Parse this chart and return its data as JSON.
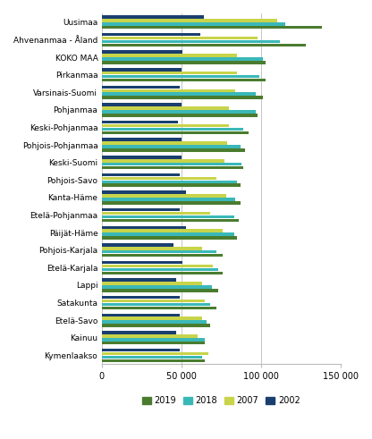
{
  "regions": [
    "Uusimaa",
    "Ahvenanmaa - Åland",
    "KOKO MAA",
    "Pirkanmaa",
    "Varsinais-Suomi",
    "Pohjanmaa",
    "Keski-Pohjanmaa",
    "Pohjois-Pohjanmaa",
    "Keski-Suomi",
    "Pohjois-Savo",
    "Kanta-Häme",
    "Etelä-Pohjanmaa",
    "Päijät-Häme",
    "Pohjois-Karjala",
    "Etelä-Karjala",
    "Lappi",
    "Satakunta",
    "Etelä-Savo",
    "Kainuu",
    "Kymenlaakso"
  ],
  "values_2019": [
    138000,
    128000,
    103000,
    103000,
    101000,
    98000,
    92000,
    90000,
    89000,
    87000,
    87000,
    86000,
    85000,
    76000,
    76000,
    73000,
    72000,
    68000,
    65000,
    65000
  ],
  "values_2018": [
    115000,
    112000,
    101000,
    99000,
    97000,
    97000,
    89000,
    87000,
    88000,
    85000,
    84000,
    83000,
    83000,
    72000,
    73000,
    69000,
    68000,
    66000,
    65000,
    63000
  ],
  "values_2007": [
    110000,
    98000,
    85000,
    85000,
    84000,
    80000,
    80000,
    79000,
    77000,
    72000,
    78000,
    68000,
    76000,
    63000,
    70000,
    63000,
    65000,
    63000,
    60000,
    67000
  ],
  "values_2002": [
    64000,
    62000,
    51000,
    50000,
    49000,
    50000,
    48000,
    50000,
    50000,
    49000,
    53000,
    49000,
    53000,
    45000,
    51000,
    47000,
    49000,
    49000,
    47000,
    49000
  ],
  "color_2019": "#4a7c2f",
  "color_2018": "#3ab8b8",
  "color_2007": "#c8d44a",
  "color_2002": "#1a3f6f",
  "xlim": [
    0,
    150000
  ],
  "xticks": [
    0,
    50000,
    100000,
    150000
  ],
  "xtick_labels": [
    "0",
    "50 000",
    "100 000",
    "150 000"
  ],
  "legend_labels": [
    "2019",
    "2018",
    "2007",
    "2002"
  ],
  "figsize": [
    4.16,
    4.91
  ],
  "dpi": 100
}
